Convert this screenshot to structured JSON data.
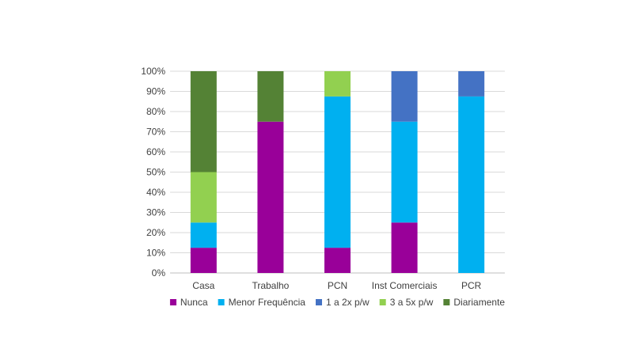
{
  "chart_data": {
    "type": "bar",
    "stacked": true,
    "percent": true,
    "categories": [
      "Casa",
      "Trabalho",
      "PCN",
      "Inst Comerciais",
      "PCR"
    ],
    "ylim": [
      0,
      100
    ],
    "yticks": [
      "0%",
      "10%",
      "20%",
      "30%",
      "40%",
      "50%",
      "60%",
      "70%",
      "80%",
      "90%",
      "100%"
    ],
    "grid": true,
    "legend_position": "bottom",
    "series": [
      {
        "name": "Nunca",
        "color": "#990099",
        "values": [
          12.5,
          75,
          12.5,
          25,
          0
        ]
      },
      {
        "name": "Menor Frequência",
        "color": "#00b0f0",
        "values": [
          12.5,
          0,
          75,
          50,
          87.5
        ]
      },
      {
        "name": "1 a 2x p/w",
        "color": "#4472c4",
        "values": [
          0,
          0,
          0,
          25,
          12.5
        ]
      },
      {
        "name": "3 a 5x p/w",
        "color": "#92d050",
        "values": [
          25,
          0,
          12.5,
          0,
          0
        ]
      },
      {
        "name": "Diariamente",
        "color": "#548235",
        "values": [
          50,
          25,
          0,
          0,
          0
        ]
      }
    ]
  }
}
